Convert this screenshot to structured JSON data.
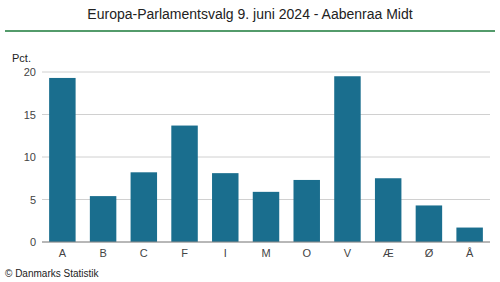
{
  "chart_data": {
    "type": "bar",
    "title": "Europa-Parlamentsvalg 9. juni 2024 - Aabenraa Midt",
    "ylabel": "Pct.",
    "footer": "© Danmarks Statistik",
    "categories": [
      "A",
      "B",
      "C",
      "F",
      "I",
      "M",
      "O",
      "V",
      "Æ",
      "Ø",
      "Å"
    ],
    "values": [
      19.3,
      5.4,
      8.2,
      13.7,
      8.1,
      5.9,
      7.3,
      19.5,
      7.5,
      4.3,
      1.7
    ],
    "color": "#1a6e8e",
    "ylim": [
      0,
      20
    ],
    "yticks": [
      0,
      5,
      10,
      15,
      20
    ],
    "grid": true
  }
}
